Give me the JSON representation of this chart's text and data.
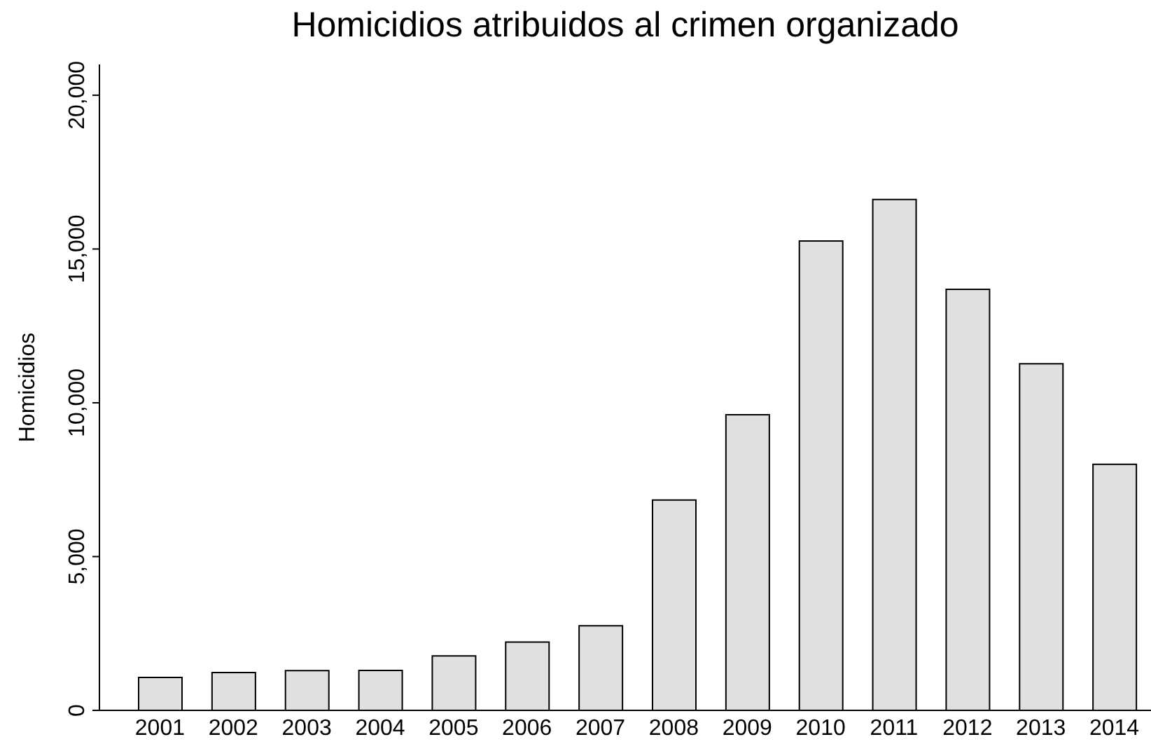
{
  "chart_data": {
    "type": "bar",
    "title": "Homicidios atribuidos al crimen organizado",
    "ylabel": "Homicidios",
    "categories": [
      "2001",
      "2002",
      "2003",
      "2004",
      "2005",
      "2006",
      "2007",
      "2008",
      "2009",
      "2010",
      "2011",
      "2012",
      "2013",
      "2014"
    ],
    "values": [
      1070,
      1230,
      1290,
      1300,
      1770,
      2220,
      2750,
      6840,
      9610,
      15260,
      16610,
      13690,
      11270,
      8000
    ],
    "color": "#e0e0e0",
    "ylim": [
      0,
      21000
    ],
    "yticks": [
      {
        "value": 0,
        "label": "0"
      },
      {
        "value": 5000,
        "label": "5,000"
      },
      {
        "value": 10000,
        "label": "10,000"
      },
      {
        "value": 15000,
        "label": "15,000"
      },
      {
        "value": 20000,
        "label": "20,000"
      }
    ],
    "grid": false,
    "legend": false
  }
}
